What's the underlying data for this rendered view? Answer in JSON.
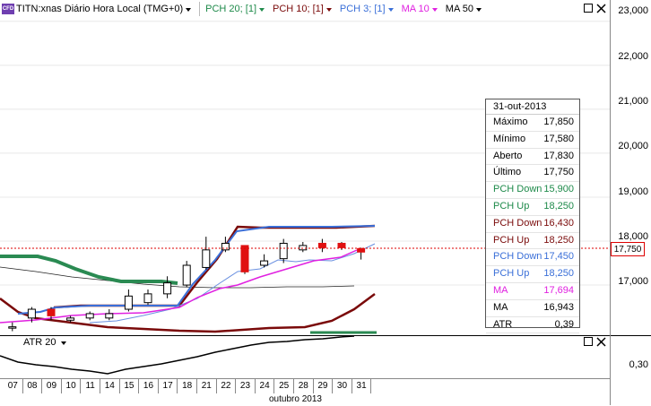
{
  "header": {
    "badge": "CFD",
    "symbol_title": "TITN:xnas Diário Hora Local (TMG+0)",
    "indicators": [
      {
        "label": "PCH 20; [1]",
        "color": "#1e8a4a"
      },
      {
        "label": "PCH 10; [1]",
        "color": "#7a0a0a"
      },
      {
        "label": "PCH 3; [1]",
        "color": "#3a6fd8"
      },
      {
        "label": "MA 10",
        "color": "#e020e0"
      },
      {
        "label": "MA 50",
        "color": "#000000"
      }
    ]
  },
  "price_axis": {
    "labels": [
      "23,000",
      "22,000",
      "21,000",
      "20,000",
      "19,000",
      "18,000",
      "17,000"
    ],
    "current_price": "17,750"
  },
  "atr_axis": {
    "labels": [
      "0,30"
    ]
  },
  "info_box": {
    "date": "31-out-2013",
    "rows": [
      {
        "key": "Máximo",
        "value": "17,850",
        "color": "#000000"
      },
      {
        "key": "Mínimo",
        "value": "17,580",
        "color": "#000000"
      },
      {
        "key": "Aberto",
        "value": "17,830",
        "color": "#000000"
      },
      {
        "key": "Último",
        "value": "17,750",
        "color": "#000000"
      },
      {
        "key": "PCH Down",
        "value": "15,900",
        "color": "#1e8a4a"
      },
      {
        "key": "PCH Up",
        "value": "18,250",
        "color": "#1e8a4a"
      },
      {
        "key": "PCH Down",
        "value": "16,430",
        "color": "#7a0a0a"
      },
      {
        "key": "PCH Up",
        "value": "18,250",
        "color": "#7a0a0a"
      },
      {
        "key": "PCH Down",
        "value": "17,450",
        "color": "#3a6fd8"
      },
      {
        "key": "PCH Up",
        "value": "18,250",
        "color": "#3a6fd8"
      },
      {
        "key": "MA",
        "value": "17,694",
        "color": "#e020e0"
      },
      {
        "key": "MA",
        "value": "16,943",
        "color": "#000000"
      },
      {
        "key": "ATR",
        "value": "0,39",
        "color": "#000000"
      }
    ]
  },
  "atr_panel": {
    "label": "ATR 20"
  },
  "x_axis": {
    "days": [
      "07",
      "08",
      "09",
      "10",
      "11",
      "14",
      "15",
      "16",
      "17",
      "18",
      "21",
      "22",
      "23",
      "24",
      "25",
      "28",
      "29",
      "30",
      "31"
    ],
    "month": "outubro 2013"
  },
  "chart_data": {
    "type": "candlestick",
    "dates": [
      "07",
      "08",
      "09",
      "10",
      "11",
      "14",
      "15",
      "16",
      "17",
      "18",
      "21",
      "22",
      "23",
      "24",
      "25",
      "28",
      "29",
      "30",
      "31"
    ],
    "open": [
      16.05,
      16.25,
      16.45,
      16.2,
      16.25,
      16.25,
      16.45,
      16.6,
      16.8,
      17.0,
      17.4,
      17.8,
      17.9,
      17.45,
      17.6,
      17.8,
      17.95,
      17.95,
      17.83
    ],
    "close": [
      16.05,
      16.45,
      16.3,
      16.25,
      16.35,
      16.35,
      16.75,
      16.8,
      17.05,
      17.45,
      17.8,
      17.95,
      17.3,
      17.55,
      17.95,
      17.9,
      17.85,
      17.85,
      17.75
    ],
    "high": [
      16.15,
      16.5,
      16.5,
      16.3,
      16.4,
      16.45,
      16.9,
      16.9,
      17.2,
      17.55,
      18.1,
      18.1,
      17.9,
      17.7,
      18.05,
      17.98,
      18.05,
      17.98,
      17.85
    ],
    "low": [
      15.95,
      16.15,
      16.2,
      16.15,
      16.2,
      16.2,
      16.4,
      16.55,
      16.7,
      16.95,
      17.35,
      17.75,
      17.25,
      17.4,
      17.5,
      17.75,
      17.75,
      17.8,
      17.58
    ],
    "ylim": [
      15.9,
      23.2
    ],
    "series": [
      {
        "name": "PCH 20; [1]",
        "color": "#1e8a4a"
      },
      {
        "name": "PCH 10; [1]",
        "color": "#7a0a0a"
      },
      {
        "name": "PCH 3; [1]",
        "color": "#3a6fd8"
      },
      {
        "name": "MA 10",
        "color": "#e020e0"
      },
      {
        "name": "MA 50",
        "color": "#000000"
      }
    ]
  }
}
